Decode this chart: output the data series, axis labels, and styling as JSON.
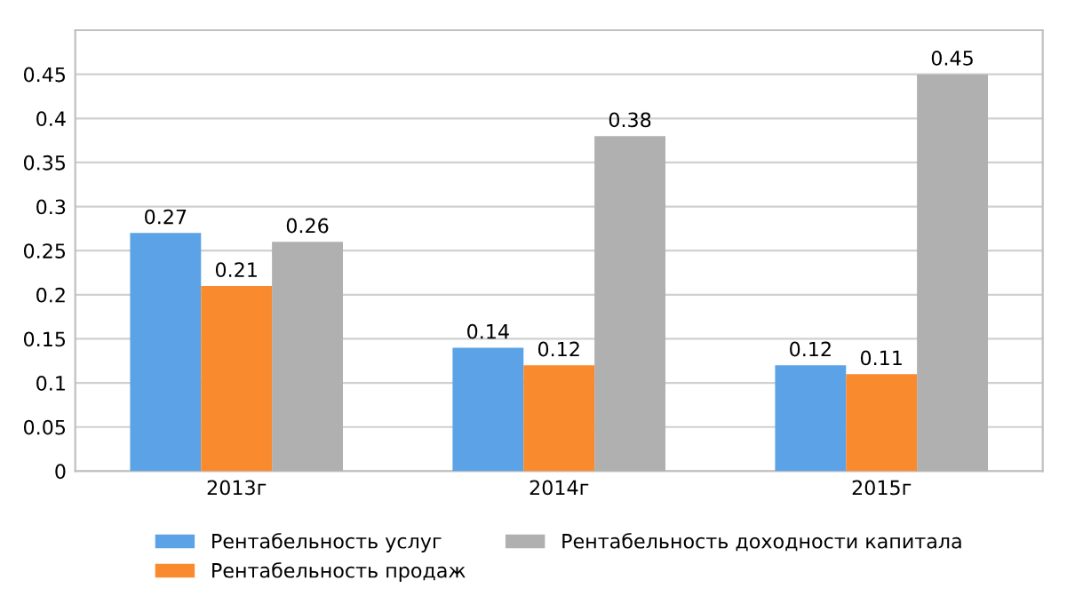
{
  "chart_data": {
    "type": "bar",
    "categories": [
      "2013г",
      "2014г",
      "2015г"
    ],
    "series": [
      {
        "name": "Рентабельность услуг",
        "color": "#5ba3e6",
        "values": [
          0.27,
          0.14,
          0.12
        ]
      },
      {
        "name": "Рентабельность продаж",
        "color": "#f98a2e",
        "values": [
          0.21,
          0.12,
          0.11
        ]
      },
      {
        "name": "Рентабельность доходности капитала",
        "color": "#b0b0b0",
        "values": [
          0.26,
          0.38,
          0.45
        ]
      }
    ],
    "ylim": [
      0,
      0.5
    ],
    "yticks": [
      0,
      0.05,
      0.1,
      0.15,
      0.2,
      0.25,
      0.3,
      0.35,
      0.4,
      0.45
    ],
    "grid": "y",
    "legend": "bottom",
    "data_labels": true
  }
}
